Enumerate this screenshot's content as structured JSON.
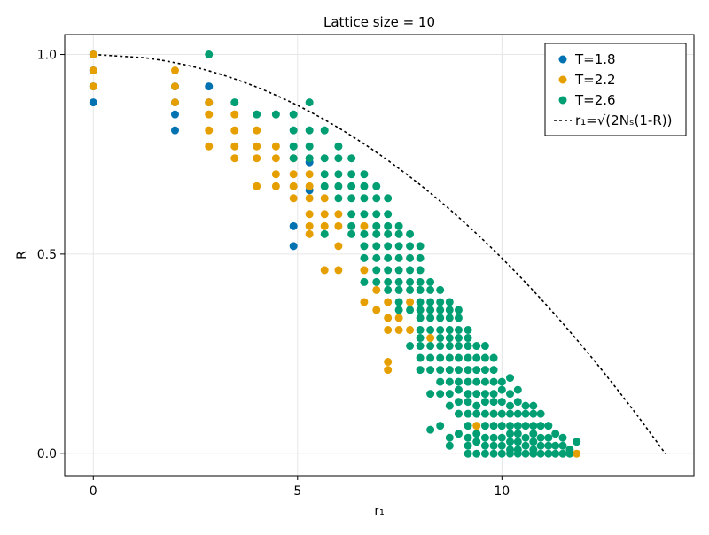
{
  "chart_data": {
    "type": "scatter",
    "title": "Lattice size = 10",
    "xlabel": "r₁",
    "ylabel": "R",
    "xlim": [
      -0.7,
      14.7
    ],
    "ylim": [
      -0.055,
      1.05
    ],
    "xticks": [
      {
        "value": 0,
        "label": "0"
      },
      {
        "value": 5,
        "label": "5"
      },
      {
        "value": 10,
        "label": "10"
      }
    ],
    "yticks": [
      {
        "value": 0.0,
        "label": "0.0"
      },
      {
        "value": 0.5,
        "label": "0.5"
      },
      {
        "value": 1.0,
        "label": "1.0"
      }
    ],
    "grid": true,
    "legend_position": "top-right",
    "series": [
      {
        "name": "T=1.8",
        "color": "#0072b2",
        "points": [
          [
            0,
            1.0
          ],
          [
            0,
            0.96
          ],
          [
            0,
            0.92
          ],
          [
            0,
            0.88
          ],
          [
            2,
            0.92
          ],
          [
            2,
            0.88
          ],
          [
            2,
            0.85
          ],
          [
            2,
            0.81
          ],
          [
            2.83,
            0.92
          ],
          [
            2.83,
            0.88
          ],
          [
            4.9,
            0.57
          ],
          [
            4.9,
            0.52
          ],
          [
            5.29,
            0.73
          ],
          [
            5.29,
            0.66
          ]
        ]
      },
      {
        "name": "T=2.2",
        "color": "#e69f00",
        "points": [
          [
            0,
            1.0
          ],
          [
            0,
            0.96
          ],
          [
            0,
            0.92
          ],
          [
            2,
            0.96
          ],
          [
            2,
            0.92
          ],
          [
            2,
            0.88
          ],
          [
            2.83,
            0.88
          ],
          [
            2.83,
            0.85
          ],
          [
            2.83,
            0.81
          ],
          [
            2.83,
            0.77
          ],
          [
            3.46,
            0.85
          ],
          [
            3.46,
            0.81
          ],
          [
            3.46,
            0.77
          ],
          [
            3.46,
            0.74
          ],
          [
            4,
            0.81
          ],
          [
            4,
            0.77
          ],
          [
            4,
            0.74
          ],
          [
            4,
            0.67
          ],
          [
            4.47,
            0.77
          ],
          [
            4.47,
            0.74
          ],
          [
            4.47,
            0.7
          ],
          [
            4.47,
            0.67
          ],
          [
            4.9,
            0.74
          ],
          [
            4.9,
            0.7
          ],
          [
            4.9,
            0.67
          ],
          [
            4.9,
            0.64
          ],
          [
            5.29,
            0.7
          ],
          [
            5.29,
            0.67
          ],
          [
            5.29,
            0.64
          ],
          [
            5.29,
            0.6
          ],
          [
            5.29,
            0.57
          ],
          [
            5.29,
            0.55
          ],
          [
            5.66,
            0.64
          ],
          [
            5.66,
            0.6
          ],
          [
            5.66,
            0.57
          ],
          [
            5.66,
            0.46
          ],
          [
            6.0,
            0.6
          ],
          [
            6.0,
            0.57
          ],
          [
            6.0,
            0.52
          ],
          [
            6.0,
            0.46
          ],
          [
            6.63,
            0.57
          ],
          [
            6.63,
            0.46
          ],
          [
            6.63,
            0.38
          ],
          [
            6.93,
            0.41
          ],
          [
            6.93,
            0.36
          ],
          [
            7.21,
            0.38
          ],
          [
            7.21,
            0.34
          ],
          [
            7.21,
            0.31
          ],
          [
            7.21,
            0.23
          ],
          [
            7.21,
            0.21
          ],
          [
            7.48,
            0.34
          ],
          [
            7.48,
            0.31
          ],
          [
            7.75,
            0.31
          ],
          [
            7.75,
            0.38
          ],
          [
            8.25,
            0.29
          ],
          [
            9.38,
            0.07
          ],
          [
            9.8,
            0.1
          ],
          [
            11.83,
            0.0
          ]
        ]
      },
      {
        "name": "T=2.6",
        "color": "#009e73",
        "points": [
          [
            2.83,
            1.0
          ],
          [
            3.46,
            0.88
          ],
          [
            4,
            0.85
          ],
          [
            4.47,
            0.85
          ],
          [
            4.9,
            0.85
          ],
          [
            4.9,
            0.81
          ],
          [
            4.9,
            0.77
          ],
          [
            4.9,
            0.74
          ],
          [
            5.29,
            0.88
          ],
          [
            5.29,
            0.81
          ],
          [
            5.29,
            0.77
          ],
          [
            5.29,
            0.74
          ],
          [
            5.66,
            0.81
          ],
          [
            5.66,
            0.74
          ],
          [
            5.66,
            0.7
          ],
          [
            5.66,
            0.67
          ],
          [
            5.66,
            0.55
          ],
          [
            6.0,
            0.77
          ],
          [
            6.0,
            0.74
          ],
          [
            6.0,
            0.7
          ],
          [
            6.0,
            0.67
          ],
          [
            6.0,
            0.64
          ],
          [
            6.32,
            0.74
          ],
          [
            6.32,
            0.7
          ],
          [
            6.32,
            0.67
          ],
          [
            6.32,
            0.64
          ],
          [
            6.32,
            0.6
          ],
          [
            6.32,
            0.57
          ],
          [
            6.32,
            0.55
          ],
          [
            6.63,
            0.7
          ],
          [
            6.63,
            0.67
          ],
          [
            6.63,
            0.64
          ],
          [
            6.63,
            0.6
          ],
          [
            6.63,
            0.55
          ],
          [
            6.63,
            0.52
          ],
          [
            6.63,
            0.49
          ],
          [
            6.63,
            0.43
          ],
          [
            6.93,
            0.67
          ],
          [
            6.93,
            0.64
          ],
          [
            6.93,
            0.6
          ],
          [
            6.93,
            0.57
          ],
          [
            6.93,
            0.55
          ],
          [
            6.93,
            0.52
          ],
          [
            6.93,
            0.49
          ],
          [
            6.93,
            0.46
          ],
          [
            6.93,
            0.43
          ],
          [
            7.21,
            0.64
          ],
          [
            7.21,
            0.6
          ],
          [
            7.21,
            0.57
          ],
          [
            7.21,
            0.55
          ],
          [
            7.21,
            0.52
          ],
          [
            7.21,
            0.49
          ],
          [
            7.21,
            0.46
          ],
          [
            7.21,
            0.43
          ],
          [
            7.21,
            0.41
          ],
          [
            7.48,
            0.57
          ],
          [
            7.48,
            0.55
          ],
          [
            7.48,
            0.52
          ],
          [
            7.48,
            0.49
          ],
          [
            7.48,
            0.46
          ],
          [
            7.48,
            0.43
          ],
          [
            7.48,
            0.41
          ],
          [
            7.48,
            0.38
          ],
          [
            7.48,
            0.36
          ],
          [
            7.75,
            0.55
          ],
          [
            7.75,
            0.52
          ],
          [
            7.75,
            0.49
          ],
          [
            7.75,
            0.46
          ],
          [
            7.75,
            0.43
          ],
          [
            7.75,
            0.41
          ],
          [
            7.75,
            0.36
          ],
          [
            7.75,
            0.27
          ],
          [
            8.0,
            0.52
          ],
          [
            8.0,
            0.49
          ],
          [
            8.0,
            0.46
          ],
          [
            8.0,
            0.43
          ],
          [
            8.0,
            0.41
          ],
          [
            8.0,
            0.38
          ],
          [
            8.0,
            0.36
          ],
          [
            8.0,
            0.34
          ],
          [
            8.0,
            0.31
          ],
          [
            8.0,
            0.29
          ],
          [
            8.0,
            0.27
          ],
          [
            8.0,
            0.24
          ],
          [
            8.0,
            0.21
          ],
          [
            8.25,
            0.43
          ],
          [
            8.25,
            0.41
          ],
          [
            8.25,
            0.38
          ],
          [
            8.25,
            0.36
          ],
          [
            8.25,
            0.34
          ],
          [
            8.25,
            0.31
          ],
          [
            8.25,
            0.27
          ],
          [
            8.25,
            0.24
          ],
          [
            8.25,
            0.21
          ],
          [
            8.25,
            0.15
          ],
          [
            8.25,
            0.06
          ],
          [
            8.49,
            0.41
          ],
          [
            8.49,
            0.38
          ],
          [
            8.49,
            0.36
          ],
          [
            8.49,
            0.34
          ],
          [
            8.49,
            0.31
          ],
          [
            8.49,
            0.29
          ],
          [
            8.49,
            0.27
          ],
          [
            8.49,
            0.24
          ],
          [
            8.49,
            0.21
          ],
          [
            8.49,
            0.18
          ],
          [
            8.49,
            0.15
          ],
          [
            8.49,
            0.07
          ],
          [
            8.72,
            0.38
          ],
          [
            8.72,
            0.36
          ],
          [
            8.72,
            0.34
          ],
          [
            8.72,
            0.31
          ],
          [
            8.72,
            0.29
          ],
          [
            8.72,
            0.27
          ],
          [
            8.72,
            0.24
          ],
          [
            8.72,
            0.21
          ],
          [
            8.72,
            0.18
          ],
          [
            8.72,
            0.15
          ],
          [
            8.72,
            0.12
          ],
          [
            8.72,
            0.04
          ],
          [
            8.72,
            0.02
          ],
          [
            8.94,
            0.36
          ],
          [
            8.94,
            0.34
          ],
          [
            8.94,
            0.31
          ],
          [
            8.94,
            0.29
          ],
          [
            8.94,
            0.27
          ],
          [
            8.94,
            0.24
          ],
          [
            8.94,
            0.21
          ],
          [
            8.94,
            0.18
          ],
          [
            8.94,
            0.16
          ],
          [
            8.94,
            0.13
          ],
          [
            8.94,
            0.1
          ],
          [
            8.94,
            0.05
          ],
          [
            9.17,
            0.31
          ],
          [
            9.17,
            0.29
          ],
          [
            9.17,
            0.27
          ],
          [
            9.17,
            0.24
          ],
          [
            9.17,
            0.21
          ],
          [
            9.17,
            0.18
          ],
          [
            9.17,
            0.15
          ],
          [
            9.17,
            0.13
          ],
          [
            9.17,
            0.1
          ],
          [
            9.17,
            0.07
          ],
          [
            9.17,
            0.04
          ],
          [
            9.17,
            0.02
          ],
          [
            9.17,
            0.0
          ],
          [
            9.38,
            0.27
          ],
          [
            9.38,
            0.24
          ],
          [
            9.38,
            0.21
          ],
          [
            9.38,
            0.18
          ],
          [
            9.38,
            0.15
          ],
          [
            9.38,
            0.12
          ],
          [
            9.38,
            0.1
          ],
          [
            9.38,
            0.05
          ],
          [
            9.38,
            0.03
          ],
          [
            9.38,
            0.0
          ],
          [
            9.59,
            0.27
          ],
          [
            9.59,
            0.24
          ],
          [
            9.59,
            0.21
          ],
          [
            9.59,
            0.18
          ],
          [
            9.59,
            0.15
          ],
          [
            9.59,
            0.13
          ],
          [
            9.59,
            0.1
          ],
          [
            9.59,
            0.07
          ],
          [
            9.59,
            0.04
          ],
          [
            9.59,
            0.02
          ],
          [
            9.59,
            0.0
          ],
          [
            9.8,
            0.24
          ],
          [
            9.8,
            0.21
          ],
          [
            9.8,
            0.18
          ],
          [
            9.8,
            0.15
          ],
          [
            9.8,
            0.13
          ],
          [
            9.8,
            0.1
          ],
          [
            9.8,
            0.07
          ],
          [
            9.8,
            0.04
          ],
          [
            9.8,
            0.02
          ],
          [
            9.8,
            0.0
          ],
          [
            10.0,
            0.18
          ],
          [
            10.0,
            0.16
          ],
          [
            10.0,
            0.13
          ],
          [
            10.0,
            0.1
          ],
          [
            10.0,
            0.07
          ],
          [
            10.0,
            0.04
          ],
          [
            10.0,
            0.02
          ],
          [
            10.0,
            0.0
          ],
          [
            10.2,
            0.19
          ],
          [
            10.2,
            0.15
          ],
          [
            10.2,
            0.12
          ],
          [
            10.2,
            0.1
          ],
          [
            10.2,
            0.07
          ],
          [
            10.2,
            0.05
          ],
          [
            10.2,
            0.03
          ],
          [
            10.2,
            0.01
          ],
          [
            10.2,
            0.0
          ],
          [
            10.39,
            0.16
          ],
          [
            10.39,
            0.13
          ],
          [
            10.39,
            0.1
          ],
          [
            10.39,
            0.07
          ],
          [
            10.39,
            0.05
          ],
          [
            10.39,
            0.03
          ],
          [
            10.39,
            0.01
          ],
          [
            10.39,
            0.0
          ],
          [
            10.58,
            0.12
          ],
          [
            10.58,
            0.1
          ],
          [
            10.58,
            0.07
          ],
          [
            10.58,
            0.04
          ],
          [
            10.58,
            0.02
          ],
          [
            10.58,
            0.0
          ],
          [
            10.77,
            0.12
          ],
          [
            10.77,
            0.1
          ],
          [
            10.77,
            0.07
          ],
          [
            10.77,
            0.05
          ],
          [
            10.77,
            0.03
          ],
          [
            10.77,
            0.01
          ],
          [
            10.77,
            0.0
          ],
          [
            10.95,
            0.1
          ],
          [
            10.95,
            0.07
          ],
          [
            10.95,
            0.04
          ],
          [
            10.95,
            0.02
          ],
          [
            10.95,
            0.0
          ],
          [
            11.14,
            0.07
          ],
          [
            11.14,
            0.04
          ],
          [
            11.14,
            0.02
          ],
          [
            11.14,
            0.0
          ],
          [
            11.31,
            0.05
          ],
          [
            11.31,
            0.02
          ],
          [
            11.31,
            0.0
          ],
          [
            11.49,
            0.04
          ],
          [
            11.49,
            0.02
          ],
          [
            11.49,
            0.0
          ],
          [
            11.66,
            0.01
          ],
          [
            11.66,
            0.0
          ],
          [
            11.83,
            0.03
          ]
        ]
      }
    ],
    "curve": {
      "name": "r₁=√(2Nₛ(1-R))",
      "color": "#000000",
      "style": "dashed",
      "n_s": 100
    }
  }
}
